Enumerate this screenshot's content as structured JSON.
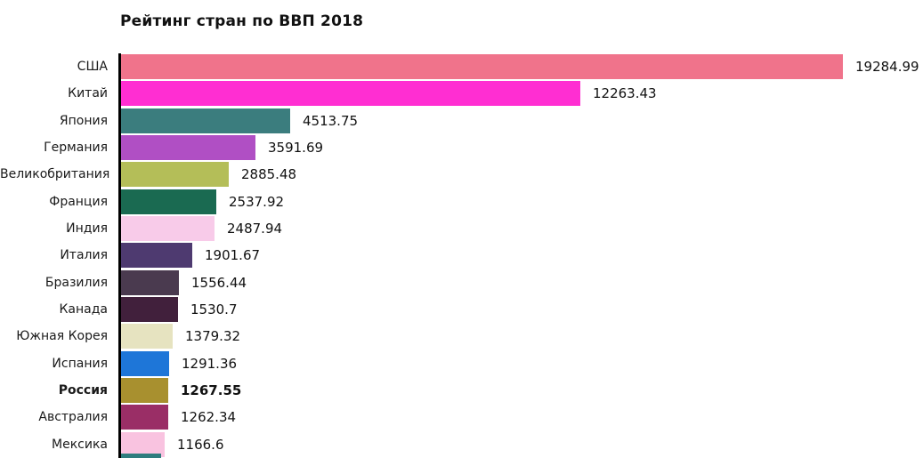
{
  "chart_data": {
    "type": "bar",
    "orientation": "horizontal",
    "title": "Рейтинг стран по ВВП 2018",
    "xlim": [
      0,
      19800
    ],
    "max_value": 19284.99,
    "categories": [
      "США",
      "Китай",
      "Япония",
      "Германия",
      "Великобритания",
      "Франция",
      "Индия",
      "Италия",
      "Бразилия",
      "Канада",
      "Южная Корея",
      "Испания",
      "Россия",
      "Австралия",
      "Мексика"
    ],
    "values": [
      19284.99,
      12263.43,
      4513.75,
      3591.69,
      2885.48,
      2537.92,
      2487.94,
      1901.67,
      1556.44,
      1530.7,
      1379.32,
      1291.36,
      1267.55,
      1262.34,
      1166.6
    ],
    "value_labels": [
      "19284.99",
      "12263.43",
      "4513.75",
      "3591.69",
      "2885.48",
      "2537.92",
      "2487.94",
      "1901.67",
      "1556.44",
      "1530.7",
      "1379.32",
      "1291.36",
      "1267.55",
      "1262.34",
      "1166.6"
    ],
    "bar_colors": [
      "#f0738b",
      "#ff2ed2",
      "#3b7d7e",
      "#b04fc4",
      "#b4be58",
      "#1a6a51",
      "#f8cbe9",
      "#4e3a70",
      "#4a3a4f",
      "#41203c",
      "#e6e3c0",
      "#1e76d8",
      "#a8902f",
      "#9a2e66",
      "#f9c3e0"
    ],
    "highlighted_category": "Россия",
    "highlight_index": 12,
    "grid": false,
    "legend": "none",
    "partial_bottom_bar_color": "#2e7d7e"
  }
}
